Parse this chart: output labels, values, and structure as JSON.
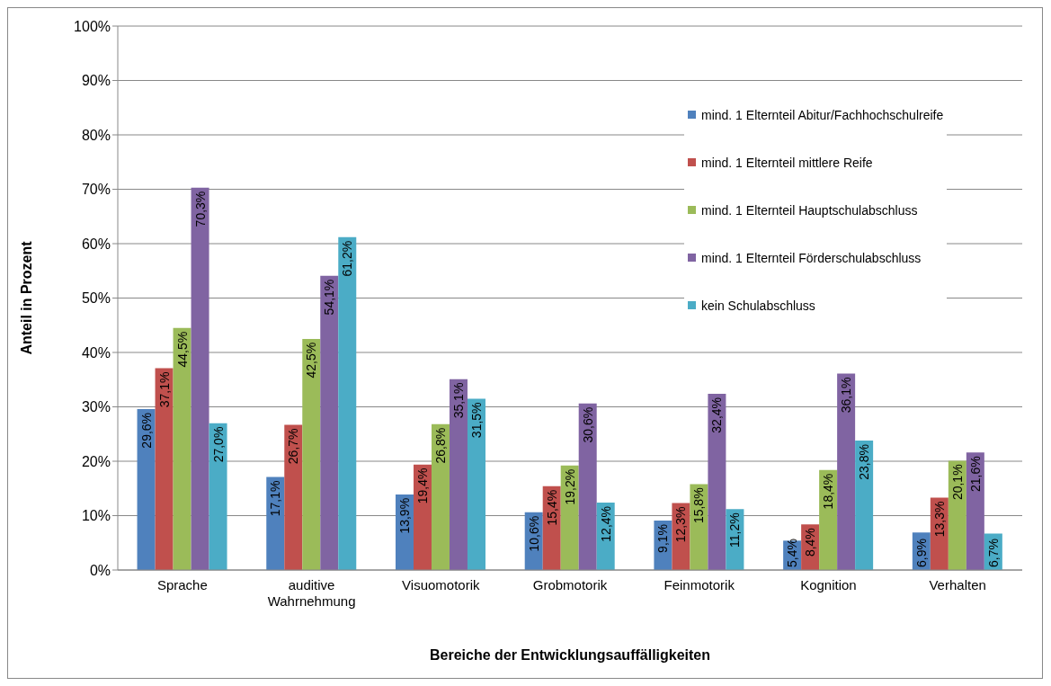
{
  "chart_data": {
    "type": "bar",
    "xlabel": "Bereiche der Entwicklungsauffälligkeiten",
    "ylabel": "Anteil in Prozent",
    "categories": [
      "Sprache",
      "auditive Wahrnehmung",
      "Visuomotorik",
      "Grobmotorik",
      "Feinmotorik",
      "Kognition",
      "Verhalten"
    ],
    "series": [
      {
        "name": "mind. 1 Elternteil Abitur/Fachhochschulreife",
        "color": "#4f81bd",
        "values": [
          29.6,
          17.1,
          13.9,
          10.6,
          9.1,
          5.4,
          6.9
        ],
        "value_labels": [
          "29,6%",
          "17,1%",
          "13,9%",
          "10,6%",
          "9,1%",
          "5,4%",
          "6,9%"
        ]
      },
      {
        "name": "mind. 1 Elternteil mittlere Reife",
        "color": "#c0504d",
        "values": [
          37.1,
          26.7,
          19.4,
          15.4,
          12.3,
          8.4,
          13.3
        ],
        "value_labels": [
          "37,1%",
          "26,7%",
          "19,4%",
          "15,4%",
          "12,3%",
          "8,4%",
          "13,3%"
        ]
      },
      {
        "name": "mind. 1 Elternteil Hauptschulabschluss",
        "color": "#9bbb59",
        "values": [
          44.5,
          42.5,
          26.8,
          19.2,
          15.8,
          18.4,
          20.1
        ],
        "value_labels": [
          "44,5%",
          "42,5%",
          "26,8%",
          "19,2%",
          "15,8%",
          "18,4%",
          "20,1%"
        ]
      },
      {
        "name": "mind. 1 Elternteil Förderschulabschluss",
        "color": "#8064a2",
        "values": [
          70.3,
          54.1,
          35.1,
          30.6,
          32.4,
          36.1,
          21.6
        ],
        "value_labels": [
          "70,3%",
          "54,1%",
          "35,1%",
          "30,6%",
          "32,4%",
          "36,1%",
          "21,6%"
        ]
      },
      {
        "name": "kein Schulabschluss",
        "color": "#4bacc6",
        "values": [
          27.0,
          61.2,
          31.5,
          12.4,
          11.2,
          23.8,
          6.7
        ],
        "value_labels": [
          "27,0%",
          "61,2%",
          "31,5%",
          "12,4%",
          "11,2%",
          "23,8%",
          "6,7%"
        ]
      }
    ],
    "ylim": [
      0,
      100
    ],
    "yticks": [
      {
        "value": 0,
        "label": "0%"
      },
      {
        "value": 10,
        "label": "10%"
      },
      {
        "value": 20,
        "label": "20%"
      },
      {
        "value": 30,
        "label": "30%"
      },
      {
        "value": 40,
        "label": "40%"
      },
      {
        "value": 50,
        "label": "50%"
      },
      {
        "value": 60,
        "label": "60%"
      },
      {
        "value": 70,
        "label": "70%"
      },
      {
        "value": 80,
        "label": "80%"
      },
      {
        "value": 90,
        "label": "90%"
      },
      {
        "value": 100,
        "label": "100%"
      }
    ],
    "grid": "y",
    "legend": "top right"
  }
}
